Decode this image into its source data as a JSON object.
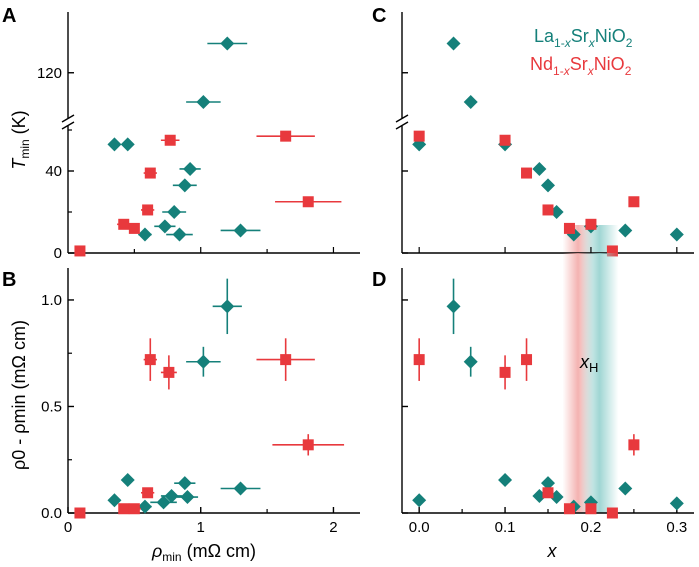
{
  "colors": {
    "la": "#15807a",
    "nd": "#e8393d",
    "axis": "#000000",
    "la_band": "#8fcfcc",
    "nd_band": "#f2a5a3"
  },
  "legend": {
    "la": {
      "pre": "La",
      "sub1": "1-",
      "subx": "x",
      "mid": "Sr",
      "subx2": "x",
      "post": "NiO",
      "sub2": "2"
    },
    "nd": {
      "pre": "Nd",
      "sub1": "1-",
      "subx": "x",
      "mid": "Sr",
      "subx2": "x",
      "post": "NiO",
      "sub2": "2"
    }
  },
  "chart_data": [
    {
      "panel": "A",
      "type": "scatter",
      "xlabel": "",
      "ylabel": {
        "main": "T",
        "sub": "min",
        "unit": " (K)"
      },
      "xlim": [
        0,
        2.2
      ],
      "ylim_lower": [
        0,
        60
      ],
      "ylim_upper": [
        102,
        142
      ],
      "yticks": [
        {
          "v": 0,
          "label": "0"
        },
        {
          "v": 40,
          "label": "40"
        },
        {
          "v": 120,
          "label": "120"
        }
      ],
      "series": [
        {
          "name": "La1-xSrxNiO2",
          "marker": "diamond",
          "points": [
            {
              "x": 1.2,
              "y": 138,
              "xerr": 0.15
            },
            {
              "x": 1.02,
              "y": 102,
              "xerr": 0.13
            },
            {
              "x": 0.35,
              "y": 53
            },
            {
              "x": 0.45,
              "y": 53
            },
            {
              "x": 0.92,
              "y": 41,
              "xerr": 0.08
            },
            {
              "x": 0.88,
              "y": 33,
              "xerr": 0.09
            },
            {
              "x": 0.8,
              "y": 20,
              "xerr": 0.09
            },
            {
              "x": 0.73,
              "y": 13,
              "xerr": 0.08
            },
            {
              "x": 0.58,
              "y": 9,
              "xerr": 0.05
            },
            {
              "x": 0.84,
              "y": 9,
              "xerr": 0.1
            },
            {
              "x": 1.3,
              "y": 11,
              "xerr": 0.15
            }
          ]
        },
        {
          "name": "Nd1-xSrxNiO2",
          "marker": "square",
          "points": [
            {
              "x": 0.09,
              "y": 1
            },
            {
              "x": 0.42,
              "y": 14,
              "xerr": 0.05
            },
            {
              "x": 0.5,
              "y": 12
            },
            {
              "x": 0.62,
              "y": 39,
              "xerr": 0.05
            },
            {
              "x": 0.6,
              "y": 21,
              "xerr": 0.05
            },
            {
              "x": 0.77,
              "y": 55,
              "xerr": 0.07
            },
            {
              "x": 1.64,
              "y": 57,
              "xerr": 0.22
            },
            {
              "x": 1.81,
              "y": 25,
              "xerr": 0.25
            }
          ]
        }
      ]
    },
    {
      "panel": "B",
      "type": "scatter",
      "xlabel": {
        "main": "ρ",
        "sub": "min",
        "unit": " (mΩ cm)"
      },
      "ylabel": {
        "text": "ρ0 - ρmin (mΩ cm)"
      },
      "xlim": [
        0,
        2.2
      ],
      "ylim": [
        0,
        1.15
      ],
      "xticks": [
        {
          "v": 0,
          "label": "0"
        },
        {
          "v": 1,
          "label": "1"
        },
        {
          "v": 2,
          "label": "2"
        }
      ],
      "yticks": [
        {
          "v": 0,
          "label": "0.0"
        },
        {
          "v": 0.5,
          "label": "0.5"
        },
        {
          "v": 1.0,
          "label": "1.0"
        }
      ],
      "series": [
        {
          "name": "La1-xSrxNiO2",
          "marker": "diamond",
          "points": [
            {
              "x": 1.2,
              "y": 0.97,
              "xerr": 0.11,
              "yerr": 0.13
            },
            {
              "x": 1.02,
              "y": 0.71,
              "xerr": 0.13,
              "yerr": 0.07
            },
            {
              "x": 0.35,
              "y": 0.06
            },
            {
              "x": 0.45,
              "y": 0.155
            },
            {
              "x": 0.88,
              "y": 0.14,
              "xerr": 0.08
            },
            {
              "x": 0.78,
              "y": 0.08,
              "xerr": 0.08
            },
            {
              "x": 0.9,
              "y": 0.075,
              "xerr": 0.08
            },
            {
              "x": 0.72,
              "y": 0.05,
              "xerr": 0.1
            },
            {
              "x": 0.58,
              "y": 0.03,
              "xerr": 0.05
            },
            {
              "x": 1.3,
              "y": 0.115,
              "xerr": 0.15
            }
          ]
        },
        {
          "name": "Nd1-xSrxNiO2",
          "marker": "square",
          "points": [
            {
              "x": 0.09,
              "y": 0.0
            },
            {
              "x": 0.42,
              "y": 0.02
            },
            {
              "x": 0.5,
              "y": 0.02,
              "xerr": 0.05
            },
            {
              "x": 0.6,
              "y": 0.095,
              "xerr": 0.05
            },
            {
              "x": 0.62,
              "y": 0.72,
              "xerr": 0.05,
              "yerr": 0.1
            },
            {
              "x": 0.76,
              "y": 0.66,
              "xerr": 0.06,
              "yerr": 0.08
            },
            {
              "x": 1.64,
              "y": 0.72,
              "xerr": 0.22,
              "yerr": 0.1
            },
            {
              "x": 1.81,
              "y": 0.32,
              "xerr": 0.27,
              "yerr": 0.05
            }
          ]
        }
      ]
    },
    {
      "panel": "C",
      "type": "scatter",
      "xlabel": "",
      "ylabel": "",
      "xlim": [
        -0.02,
        0.32
      ],
      "ylim_lower": [
        0,
        60
      ],
      "ylim_upper": [
        102,
        142
      ],
      "series": [
        {
          "name": "La1-xSrxNiO2",
          "marker": "diamond",
          "points": [
            {
              "x": 0.0,
              "y": 53
            },
            {
              "x": 0.04,
              "y": 138
            },
            {
              "x": 0.06,
              "y": 102
            },
            {
              "x": 0.1,
              "y": 53
            },
            {
              "x": 0.14,
              "y": 41
            },
            {
              "x": 0.15,
              "y": 33
            },
            {
              "x": 0.16,
              "y": 20
            },
            {
              "x": 0.18,
              "y": 9
            },
            {
              "x": 0.2,
              "y": 13
            },
            {
              "x": 0.24,
              "y": 11
            },
            {
              "x": 0.3,
              "y": 9
            }
          ]
        },
        {
          "name": "Nd1-xSrxNiO2",
          "marker": "square",
          "points": [
            {
              "x": 0.0,
              "y": 57
            },
            {
              "x": 0.1,
              "y": 55
            },
            {
              "x": 0.125,
              "y": 39
            },
            {
              "x": 0.15,
              "y": 21
            },
            {
              "x": 0.175,
              "y": 12
            },
            {
              "x": 0.2,
              "y": 14
            },
            {
              "x": 0.225,
              "y": 1
            },
            {
              "x": 0.25,
              "y": 25
            }
          ]
        }
      ]
    },
    {
      "panel": "D",
      "type": "scatter",
      "xlabel": {
        "text": "x"
      },
      "ylabel": "",
      "xlim": [
        -0.02,
        0.32
      ],
      "ylim": [
        0,
        1.15
      ],
      "xticks": [
        {
          "v": 0,
          "label": "0.0"
        },
        {
          "v": 0.1,
          "label": "0.1"
        },
        {
          "v": 0.2,
          "label": "0.2"
        },
        {
          "v": 0.3,
          "label": "0.3"
        }
      ],
      "annotation": {
        "main": "x",
        "sub": "H"
      },
      "bands": [
        {
          "center": 0.185,
          "halfwidth": 0.018,
          "series": "Nd"
        },
        {
          "center": 0.21,
          "halfwidth": 0.022,
          "series": "La"
        }
      ],
      "series": [
        {
          "name": "La1-xSrxNiO2",
          "marker": "diamond",
          "points": [
            {
              "x": 0.0,
              "y": 0.06
            },
            {
              "x": 0.04,
              "y": 0.97,
              "yerr": 0.13
            },
            {
              "x": 0.06,
              "y": 0.71,
              "yerr": 0.07
            },
            {
              "x": 0.1,
              "y": 0.155
            },
            {
              "x": 0.14,
              "y": 0.08
            },
            {
              "x": 0.15,
              "y": 0.14
            },
            {
              "x": 0.16,
              "y": 0.075
            },
            {
              "x": 0.18,
              "y": 0.03
            },
            {
              "x": 0.2,
              "y": 0.05
            },
            {
              "x": 0.24,
              "y": 0.115
            },
            {
              "x": 0.3,
              "y": 0.045
            }
          ]
        },
        {
          "name": "Nd1-xSrxNiO2",
          "marker": "square",
          "points": [
            {
              "x": 0.0,
              "y": 0.72,
              "yerr": 0.1
            },
            {
              "x": 0.1,
              "y": 0.66,
              "yerr": 0.08
            },
            {
              "x": 0.125,
              "y": 0.72,
              "yerr": 0.1
            },
            {
              "x": 0.15,
              "y": 0.095
            },
            {
              "x": 0.175,
              "y": 0.02
            },
            {
              "x": 0.2,
              "y": 0.02
            },
            {
              "x": 0.225,
              "y": 0.0
            },
            {
              "x": 0.25,
              "y": 0.32,
              "yerr": 0.05
            }
          ]
        }
      ]
    }
  ]
}
